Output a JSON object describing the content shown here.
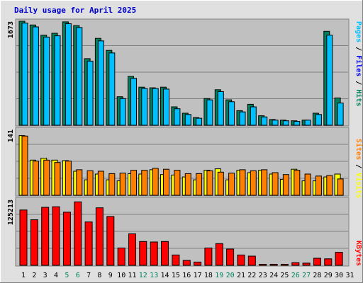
{
  "chart_data": {
    "type": "bar",
    "title": "Daily usage for April 2025",
    "x": [
      "1",
      "2",
      "3",
      "4",
      "5",
      "6",
      "7",
      "8",
      "9",
      "10",
      "11",
      "12",
      "13",
      "14",
      "15",
      "16",
      "17",
      "18",
      "19",
      "20",
      "21",
      "22",
      "23",
      "24",
      "25",
      "26",
      "27",
      "28",
      "29",
      "30",
      "31"
    ],
    "weekend_days": [
      "5",
      "6",
      "12",
      "13",
      "19",
      "20",
      "26",
      "27"
    ],
    "panels": [
      {
        "id": "hits-files-pages",
        "ymax_label": "1673",
        "ymax": 1673,
        "legend": [
          {
            "text": "Pages",
            "color": "#00c0ff"
          },
          {
            "text": "Files",
            "color": "#0000ff"
          },
          {
            "text": "Hits",
            "color": "#00805c"
          }
        ],
        "series": [
          {
            "name": "Hits",
            "color": "#00805c",
            "values": [
              1640,
              1580,
              1420,
              1450,
              1630,
              1570,
              1050,
              1370,
              1180,
              450,
              770,
              600,
              590,
              600,
              290,
              190,
              120,
              420,
              560,
              400,
              230,
              330,
              150,
              90,
              80,
              70,
              80,
              190,
              1480,
              430,
              0
            ]
          },
          {
            "name": "Files",
            "color": "#00c0ff",
            "values": [
              1610,
              1550,
              1390,
              1410,
              1600,
              1540,
              1010,
              1330,
              1140,
              420,
              740,
              580,
              580,
              570,
              260,
              170,
              110,
              400,
              530,
              370,
              210,
              290,
              130,
              80,
              70,
              60,
              80,
              170,
              1420,
              350,
              0
            ]
          }
        ]
      },
      {
        "id": "visits-sites",
        "ymax_label": "141",
        "ymax": 141,
        "legend": [
          {
            "text": "Sites",
            "color": "#ff8000"
          },
          {
            "text": "Visits",
            "color": "#ffff00"
          }
        ],
        "series": [
          {
            "name": "Visits",
            "color": "#ffff00",
            "values": [
              124,
              73,
              77,
              73,
              72,
              50,
              32,
              44,
              32,
              30,
              45,
              44,
              53,
              43,
              42,
              38,
              32,
              52,
              55,
              32,
              52,
              47,
              52,
              44,
              33,
              54,
              30,
              30,
              38,
              44,
              0
            ]
          },
          {
            "name": "Sites",
            "color": "#ff8000",
            "values": [
              123,
              71,
              73,
              68,
              71,
              53,
              51,
              50,
              45,
              46,
              52,
              52,
              56,
              54,
              52,
              45,
              45,
              51,
              48,
              46,
              53,
              51,
              53,
              47,
              43,
              52,
              44,
              40,
              41,
              34,
              0
            ]
          }
        ]
      },
      {
        "id": "kbytes",
        "ymax_label": "125213",
        "ymax": 125213,
        "legend": [
          {
            "text": "KBytes",
            "color": "#ff0000"
          }
        ],
        "series": [
          {
            "name": "KBytes",
            "color": "#ff0000",
            "values": [
              102000,
              84000,
              107000,
              108000,
              98000,
              117000,
              80000,
              106000,
              90000,
              32000,
              58000,
              44000,
              43000,
              44000,
              19000,
              9000,
              6000,
              32000,
              40000,
              30000,
              19000,
              17000,
              2000,
              2000,
              2000,
              5000,
              4000,
              13000,
              12000,
              24000,
              0
            ]
          }
        ]
      }
    ]
  }
}
